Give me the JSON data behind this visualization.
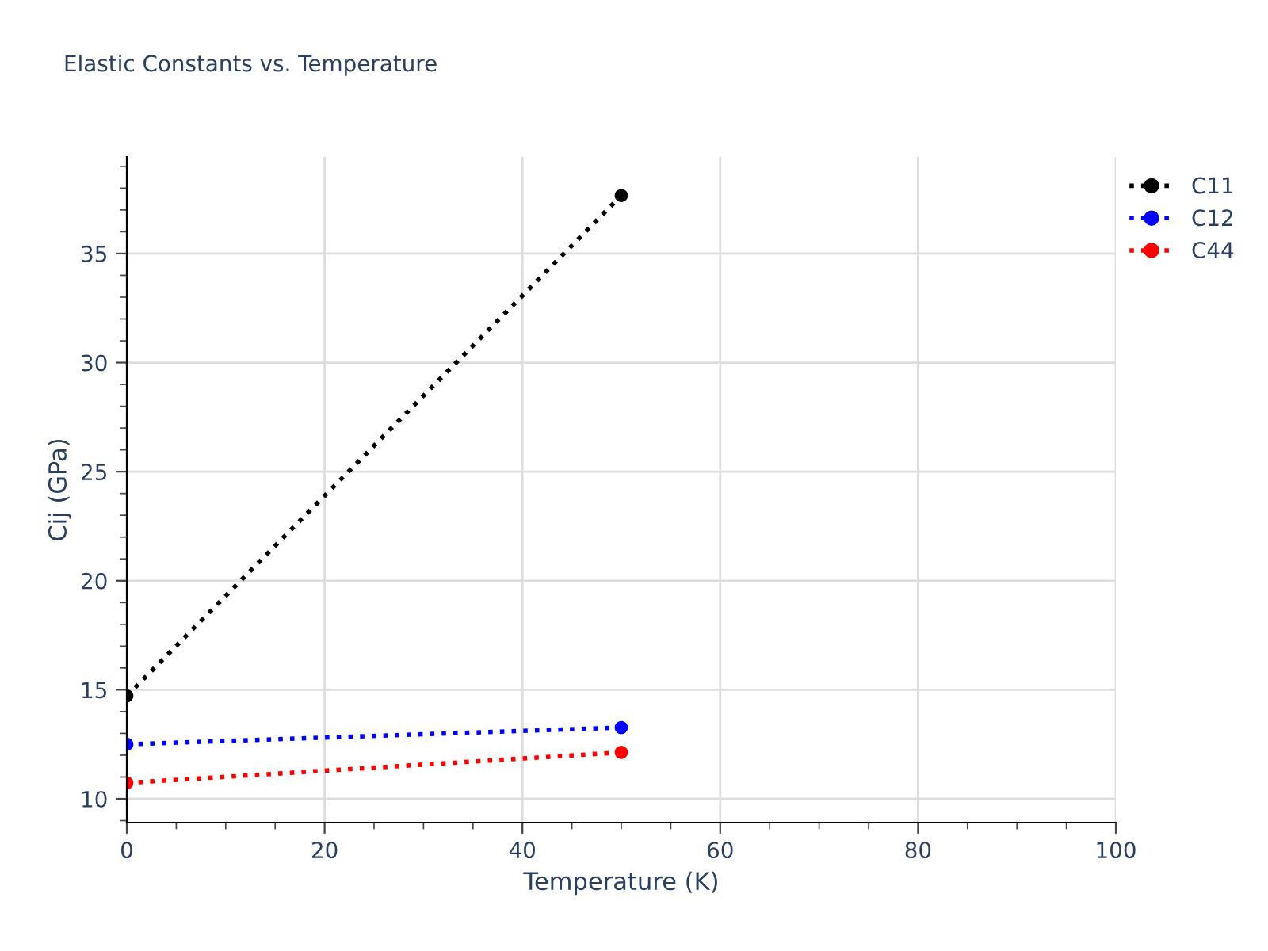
{
  "chart_data": {
    "type": "line",
    "title": "Elastic Constants vs. Temperature",
    "xlabel": "Temperature (K)",
    "ylabel": "Cij (GPa)",
    "x": [
      0,
      50
    ],
    "series": [
      {
        "name": "C11",
        "color": "#000000",
        "values": [
          14.72,
          37.66
        ]
      },
      {
        "name": "C12",
        "color": "#0000ff",
        "values": [
          12.5,
          13.27
        ]
      },
      {
        "name": "C44",
        "color": "#ff0000",
        "values": [
          10.73,
          12.13
        ]
      }
    ],
    "xlim": [
      0,
      100
    ],
    "xticks": [
      0,
      20,
      40,
      60,
      80,
      100
    ],
    "ylim": [
      8.91,
      39.43
    ],
    "yticks": [
      10,
      15,
      20,
      25,
      30,
      35
    ],
    "grid": true,
    "legend": "top right",
    "marker": "circle",
    "line_style": "dotted"
  }
}
